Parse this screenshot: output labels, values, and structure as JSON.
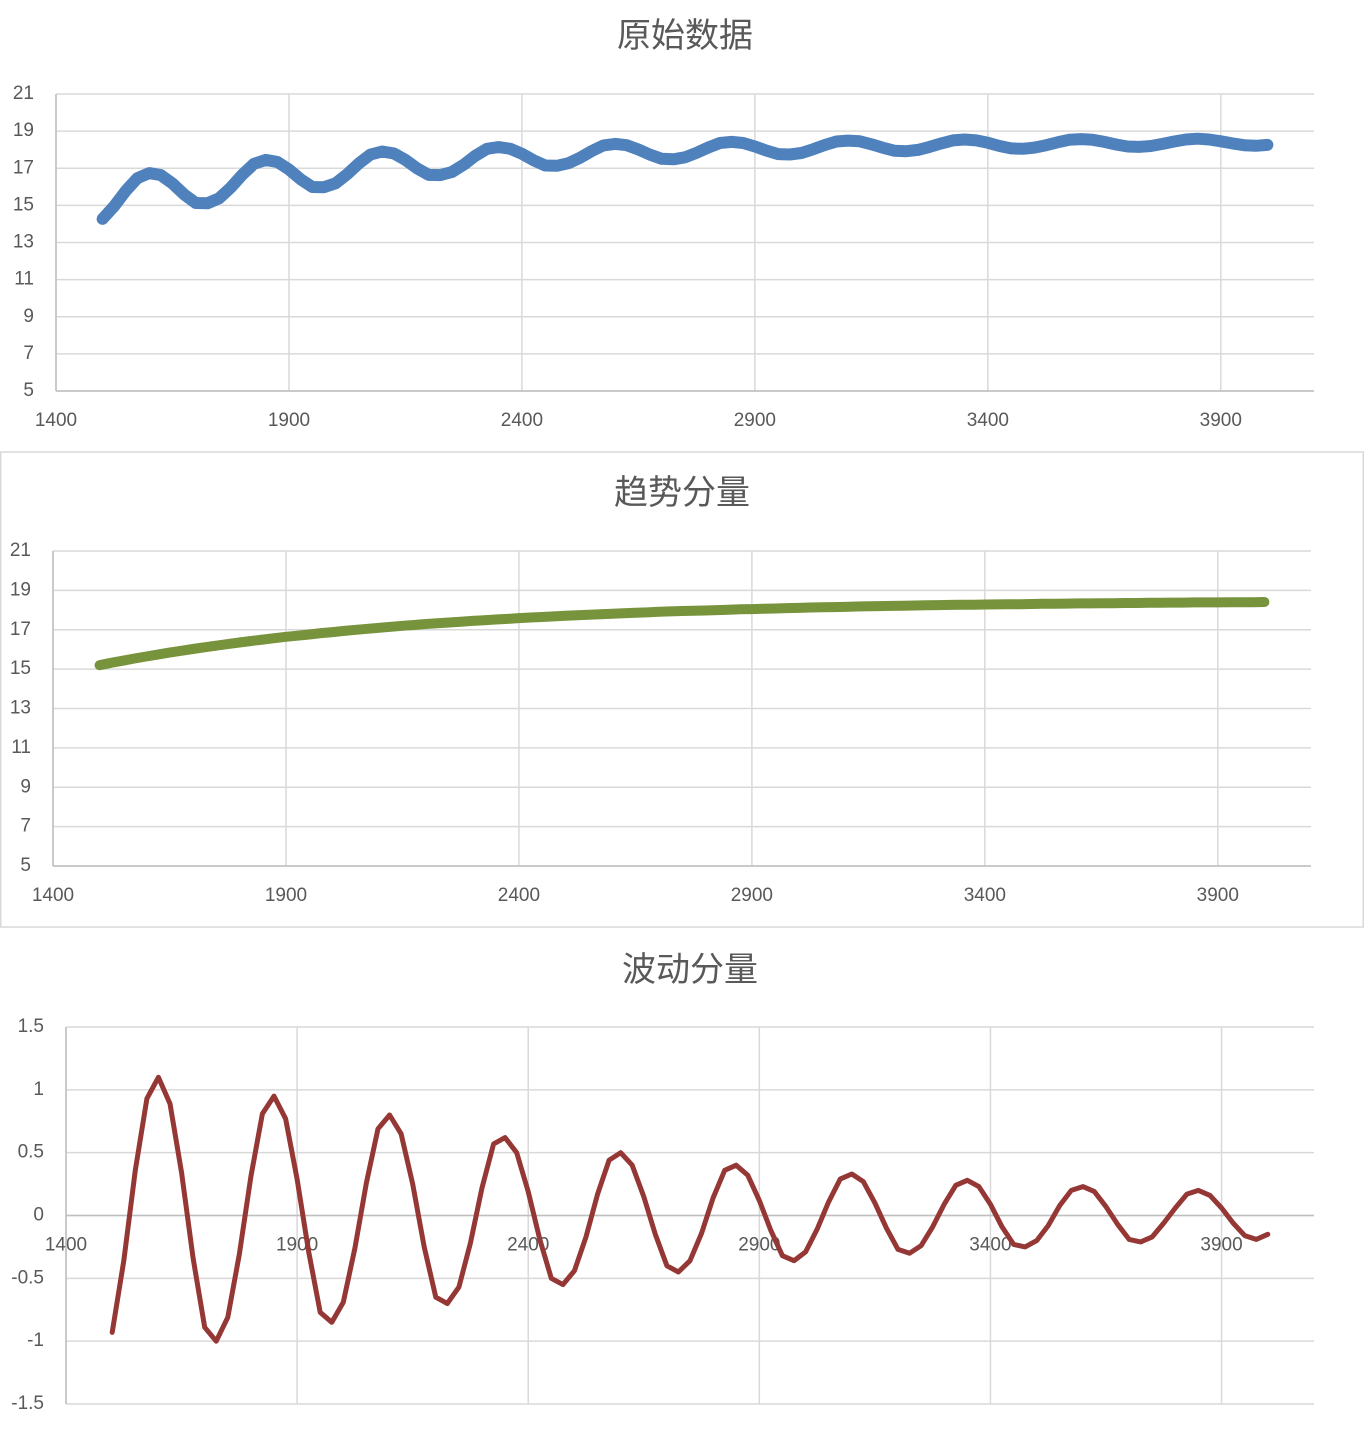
{
  "chart_data": [
    {
      "type": "line",
      "title": "原始数据",
      "x": [
        1500,
        1525,
        1550,
        1575,
        1600,
        1625,
        1650,
        1675,
        1700,
        1725,
        1750,
        1775,
        1800,
        1825,
        1850,
        1875,
        1900,
        1925,
        1950,
        1975,
        2000,
        2025,
        2050,
        2075,
        2100,
        2125,
        2150,
        2175,
        2200,
        2225,
        2250,
        2275,
        2300,
        2325,
        2350,
        2375,
        2400,
        2425,
        2450,
        2475,
        2500,
        2525,
        2550,
        2575,
        2600,
        2625,
        2650,
        2675,
        2700,
        2725,
        2750,
        2775,
        2800,
        2825,
        2850,
        2875,
        2900,
        2925,
        2950,
        2975,
        3000,
        3025,
        3050,
        3075,
        3100,
        3125,
        3150,
        3175,
        3200,
        3225,
        3250,
        3275,
        3300,
        3325,
        3350,
        3375,
        3400,
        3425,
        3450,
        3475,
        3500,
        3525,
        3550,
        3575,
        3600,
        3625,
        3650,
        3675,
        3700,
        3725,
        3750,
        3775,
        3800,
        3825,
        3850,
        3875,
        3900,
        3925,
        3950,
        3975,
        4000
      ],
      "series": [
        {
          "color": "#4f81bd",
          "values": [
            14.27,
            14.96,
            15.79,
            16.47,
            16.74,
            16.63,
            16.18,
            15.59,
            15.13,
            15.11,
            15.38,
            15.96,
            16.66,
            17.24,
            17.45,
            17.34,
            16.93,
            16.41,
            15.99,
            15.98,
            16.19,
            16.68,
            17.26,
            17.74,
            17.9,
            17.8,
            17.45,
            16.99,
            16.64,
            16.63,
            16.8,
            17.19,
            17.67,
            18.05,
            18.14,
            18.05,
            17.78,
            17.43,
            17.15,
            17.13,
            17.27,
            17.57,
            17.93,
            18.23,
            18.31,
            18.24,
            18.01,
            17.73,
            17.51,
            17.48,
            17.59,
            17.83,
            18.12,
            18.36,
            18.42,
            18.36,
            18.17,
            17.95,
            17.76,
            17.74,
            17.82,
            18.02,
            18.25,
            18.44,
            18.49,
            18.45,
            18.29,
            18.1,
            17.94,
            17.92,
            17.99,
            18.15,
            18.34,
            18.5,
            18.55,
            18.5,
            18.37,
            18.2,
            18.07,
            18.05,
            18.11,
            18.24,
            18.4,
            18.53,
            18.57,
            18.53,
            18.42,
            18.28,
            18.17,
            18.15,
            18.2,
            18.31,
            18.44,
            18.55,
            18.59,
            18.55,
            18.45,
            18.34,
            18.24,
            18.21,
            18.26
          ]
        }
      ],
      "xlim": [
        1400,
        4100
      ],
      "xticks": [
        1400,
        1900,
        2400,
        2900,
        3400,
        3900
      ],
      "ylim": [
        5,
        21
      ],
      "yticks": [
        5,
        7,
        9,
        11,
        13,
        15,
        17,
        19,
        21
      ],
      "grid": true
    },
    {
      "type": "line",
      "title": "趋势分量",
      "x": [
        1500,
        1525,
        1550,
        1575,
        1600,
        1625,
        1650,
        1675,
        1700,
        1725,
        1750,
        1775,
        1800,
        1825,
        1850,
        1875,
        1900,
        1925,
        1950,
        1975,
        2000,
        2025,
        2050,
        2075,
        2100,
        2125,
        2150,
        2175,
        2200,
        2225,
        2250,
        2275,
        2300,
        2325,
        2350,
        2375,
        2400,
        2425,
        2450,
        2475,
        2500,
        2525,
        2550,
        2575,
        2600,
        2625,
        2650,
        2675,
        2700,
        2725,
        2750,
        2775,
        2800,
        2825,
        2850,
        2875,
        2900,
        2925,
        2950,
        2975,
        3000,
        3025,
        3050,
        3075,
        3100,
        3125,
        3150,
        3175,
        3200,
        3225,
        3250,
        3275,
        3300,
        3325,
        3350,
        3375,
        3400,
        3425,
        3450,
        3475,
        3500,
        3525,
        3550,
        3575,
        3600,
        3625,
        3650,
        3675,
        3700,
        3725,
        3750,
        3775,
        3800,
        3825,
        3850,
        3875,
        3900,
        3925,
        3950,
        3975,
        4000
      ],
      "series": [
        {
          "color": "#77933c",
          "values": [
            15.2,
            15.32,
            15.43,
            15.54,
            15.64,
            15.74,
            15.84,
            15.93,
            16.02,
            16.11,
            16.19,
            16.27,
            16.35,
            16.43,
            16.5,
            16.57,
            16.64,
            16.7,
            16.76,
            16.83,
            16.88,
            16.94,
            17.0,
            17.05,
            17.1,
            17.15,
            17.2,
            17.24,
            17.29,
            17.33,
            17.37,
            17.41,
            17.45,
            17.48,
            17.52,
            17.55,
            17.59,
            17.62,
            17.65,
            17.68,
            17.71,
            17.74,
            17.76,
            17.79,
            17.81,
            17.84,
            17.86,
            17.88,
            17.91,
            17.93,
            17.95,
            17.97,
            17.98,
            18.0,
            18.02,
            18.04,
            18.05,
            18.07,
            18.08,
            18.1,
            18.11,
            18.13,
            18.14,
            18.15,
            18.16,
            18.18,
            18.19,
            18.2,
            18.21,
            18.22,
            18.23,
            18.24,
            18.25,
            18.26,
            18.27,
            18.27,
            18.28,
            18.29,
            18.3,
            18.3,
            18.31,
            18.32,
            18.32,
            18.33,
            18.34,
            18.34,
            18.35,
            18.35,
            18.36,
            18.36,
            18.37,
            18.37,
            18.38,
            18.38,
            18.39,
            18.39,
            18.39,
            18.4,
            18.4,
            18.4,
            18.41
          ]
        }
      ],
      "xlim": [
        1400,
        4100
      ],
      "xticks": [
        1400,
        1900,
        2400,
        2900,
        3400,
        3900
      ],
      "ylim": [
        5,
        21
      ],
      "yticks": [
        5,
        7,
        9,
        11,
        13,
        15,
        17,
        19,
        21
      ],
      "grid": true
    },
    {
      "type": "line",
      "title": "波动分量",
      "x": [
        1500,
        1525,
        1550,
        1575,
        1600,
        1625,
        1650,
        1675,
        1700,
        1725,
        1750,
        1775,
        1800,
        1825,
        1850,
        1875,
        1900,
        1925,
        1950,
        1975,
        2000,
        2025,
        2050,
        2075,
        2100,
        2125,
        2150,
        2175,
        2200,
        2225,
        2250,
        2275,
        2300,
        2325,
        2350,
        2375,
        2400,
        2425,
        2450,
        2475,
        2500,
        2525,
        2550,
        2575,
        2600,
        2625,
        2650,
        2675,
        2700,
        2725,
        2750,
        2775,
        2800,
        2825,
        2850,
        2875,
        2900,
        2925,
        2950,
        2975,
        3000,
        3025,
        3050,
        3075,
        3100,
        3125,
        3150,
        3175,
        3200,
        3225,
        3250,
        3275,
        3300,
        3325,
        3350,
        3375,
        3400,
        3425,
        3450,
        3475,
        3500,
        3525,
        3550,
        3575,
        3600,
        3625,
        3650,
        3675,
        3700,
        3725,
        3750,
        3775,
        3800,
        3825,
        3850,
        3875,
        3900,
        3925,
        3950,
        3975,
        4000
      ],
      "series": [
        {
          "color": "#953735",
          "values": [
            -0.93,
            -0.36,
            0.36,
            0.93,
            1.1,
            0.89,
            0.34,
            -0.34,
            -0.89,
            -1.0,
            -0.81,
            -0.31,
            0.31,
            0.81,
            0.95,
            0.77,
            0.29,
            -0.29,
            -0.77,
            -0.85,
            -0.69,
            -0.26,
            0.26,
            0.69,
            0.8,
            0.65,
            0.25,
            -0.25,
            -0.65,
            -0.7,
            -0.57,
            -0.22,
            0.22,
            0.57,
            0.62,
            0.5,
            0.19,
            -0.19,
            -0.5,
            -0.55,
            -0.44,
            -0.17,
            0.17,
            0.44,
            0.5,
            0.4,
            0.15,
            -0.15,
            -0.4,
            -0.45,
            -0.36,
            -0.14,
            0.14,
            0.36,
            0.4,
            0.32,
            0.12,
            -0.12,
            -0.32,
            -0.36,
            -0.29,
            -0.11,
            0.11,
            0.29,
            0.33,
            0.27,
            0.1,
            -0.1,
            -0.27,
            -0.3,
            -0.24,
            -0.09,
            0.09,
            0.24,
            0.28,
            0.23,
            0.09,
            -0.09,
            -0.23,
            -0.25,
            -0.2,
            -0.08,
            0.08,
            0.2,
            0.23,
            0.19,
            0.07,
            -0.07,
            -0.19,
            -0.21,
            -0.17,
            -0.06,
            0.06,
            0.17,
            0.2,
            0.16,
            0.06,
            -0.06,
            -0.16,
            -0.19,
            -0.15
          ]
        }
      ],
      "xlim": [
        1400,
        4100
      ],
      "xticks": [
        1400,
        1900,
        2400,
        2900,
        3400,
        3900
      ],
      "ylim": [
        -1.5,
        1.5
      ],
      "yticks": [
        -1.5,
        -1,
        -0.5,
        0,
        0.5,
        1,
        1.5
      ],
      "grid": true
    }
  ]
}
